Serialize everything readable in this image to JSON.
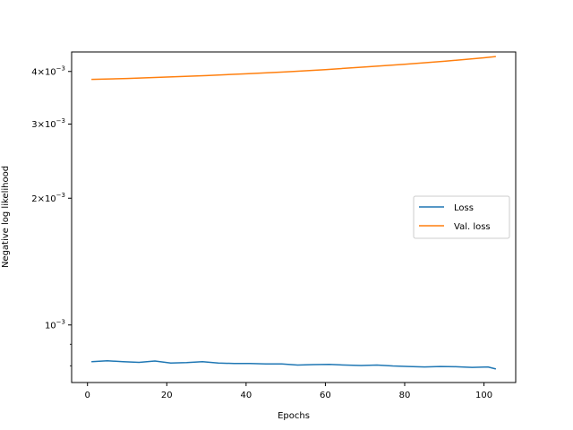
{
  "chart_data": {
    "type": "line",
    "title": "",
    "xlabel": "Epochs",
    "ylabel": "Negative log likelihood",
    "xscale": "linear",
    "yscale": "log",
    "xlim": [
      -4,
      108
    ],
    "ylim": [
      0.00073,
      0.00445
    ],
    "grid": false,
    "legend_position": "center-right",
    "x_ticks": [
      0,
      20,
      40,
      60,
      80,
      100
    ],
    "x_tick_labels": [
      "0",
      "20",
      "40",
      "60",
      "80",
      "100"
    ],
    "y_ticks": [
      0.001,
      0.002,
      0.003,
      0.004
    ],
    "y_tick_labels": [
      {
        "base": "10",
        "exp": "−3",
        "coef": ""
      },
      {
        "base": "10",
        "exp": "−3",
        "coef": "2×"
      },
      {
        "base": "10",
        "exp": "−3",
        "coef": "3×"
      },
      {
        "base": "10",
        "exp": "−3",
        "coef": "4×"
      }
    ],
    "y_minor_ticks": [
      0.0008,
      0.0009
    ],
    "series": [
      {
        "name": "Loss",
        "color": "#1f77b4",
        "x": [
          1,
          5,
          9,
          13,
          17,
          21,
          25,
          29,
          33,
          37,
          41,
          45,
          49,
          53,
          57,
          61,
          65,
          69,
          73,
          77,
          81,
          85,
          89,
          93,
          97,
          101,
          103
        ],
        "y": [
          0.000818,
          0.000822,
          0.000818,
          0.000815,
          0.000821,
          0.000812,
          0.000814,
          0.000818,
          0.000812,
          0.00081,
          0.00081,
          0.000808,
          0.000808,
          0.000803,
          0.000805,
          0.000806,
          0.000803,
          0.000801,
          0.000803,
          0.000799,
          0.000797,
          0.000795,
          0.000797,
          0.000796,
          0.000793,
          0.000795,
          0.000786
        ]
      },
      {
        "name": "Val. loss",
        "color": "#ff7f0e",
        "x": [
          1,
          10,
          20,
          30,
          40,
          50,
          60,
          70,
          80,
          90,
          100,
          103
        ],
        "y": [
          0.00383,
          0.00385,
          0.00388,
          0.00391,
          0.00395,
          0.00399,
          0.00404,
          0.0041,
          0.00416,
          0.00423,
          0.00431,
          0.00434
        ]
      }
    ]
  }
}
